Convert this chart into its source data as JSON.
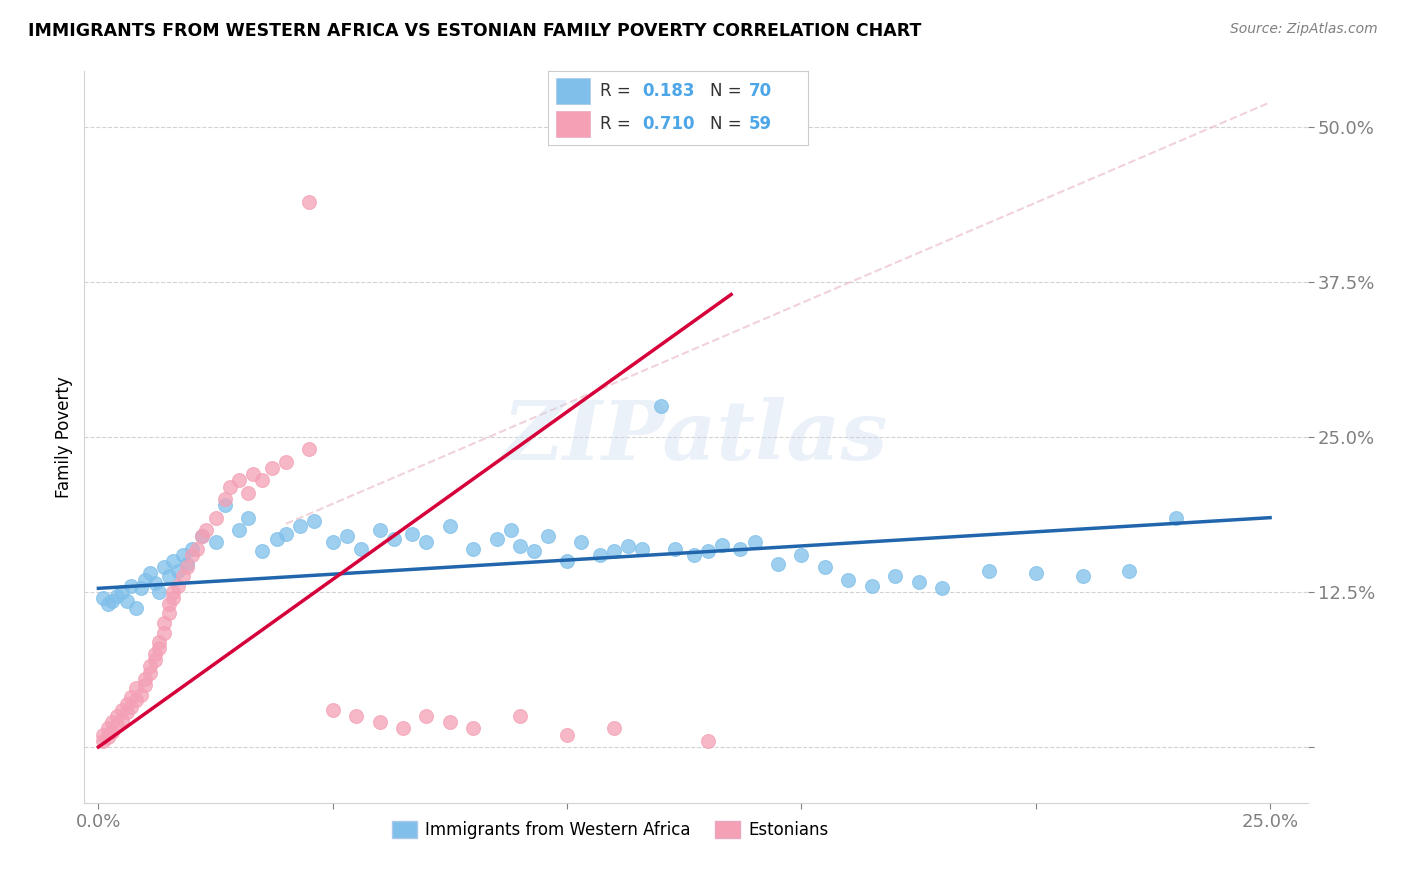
{
  "title": "IMMIGRANTS FROM WESTERN AFRICA VS ESTONIAN FAMILY POVERTY CORRELATION CHART",
  "source": "Source: ZipAtlas.com",
  "ylabel": "Family Poverty",
  "ytick_vals": [
    0.0,
    0.125,
    0.25,
    0.375,
    0.5
  ],
  "ytick_labels": [
    "",
    "12.5%",
    "25.0%",
    "37.5%",
    "50.0%"
  ],
  "xtick_vals": [
    0.0,
    0.05,
    0.1,
    0.15,
    0.2,
    0.25
  ],
  "xtick_labels": [
    "0.0%",
    "",
    "",
    "",
    "",
    "25.0%"
  ],
  "xlim": [
    -0.003,
    0.258
  ],
  "ylim": [
    -0.045,
    0.545
  ],
  "color_blue": "#7fbfea",
  "color_pink": "#f4a0b5",
  "color_blue_line": "#2166ac",
  "color_pink_line": "#d6003a",
  "color_blue_text": "#4da6e8",
  "watermark_text": "ZIPatlas",
  "legend_label_1": "Immigrants from Western Africa",
  "legend_label_2": "Estonians",
  "legend_r1": "0.183",
  "legend_n1": "70",
  "legend_r2": "0.710",
  "legend_n2": "59",
  "blue_x": [
    0.001,
    0.002,
    0.003,
    0.004,
    0.005,
    0.006,
    0.007,
    0.008,
    0.009,
    0.01,
    0.011,
    0.012,
    0.013,
    0.014,
    0.015,
    0.016,
    0.017,
    0.018,
    0.019,
    0.02,
    0.022,
    0.025,
    0.027,
    0.03,
    0.032,
    0.035,
    0.038,
    0.04,
    0.043,
    0.046,
    0.05,
    0.053,
    0.056,
    0.06,
    0.063,
    0.067,
    0.07,
    0.075,
    0.08,
    0.085,
    0.088,
    0.09,
    0.093,
    0.096,
    0.1,
    0.103,
    0.107,
    0.11,
    0.113,
    0.116,
    0.12,
    0.123,
    0.127,
    0.13,
    0.133,
    0.137,
    0.14,
    0.145,
    0.15,
    0.155,
    0.16,
    0.165,
    0.17,
    0.175,
    0.18,
    0.19,
    0.2,
    0.21,
    0.22,
    0.23
  ],
  "blue_y": [
    0.12,
    0.115,
    0.118,
    0.122,
    0.125,
    0.118,
    0.13,
    0.112,
    0.128,
    0.135,
    0.14,
    0.132,
    0.125,
    0.145,
    0.138,
    0.15,
    0.142,
    0.155,
    0.148,
    0.16,
    0.17,
    0.165,
    0.195,
    0.175,
    0.185,
    0.158,
    0.168,
    0.172,
    0.178,
    0.182,
    0.165,
    0.17,
    0.16,
    0.175,
    0.168,
    0.172,
    0.165,
    0.178,
    0.16,
    0.168,
    0.175,
    0.162,
    0.158,
    0.17,
    0.15,
    0.165,
    0.155,
    0.158,
    0.162,
    0.16,
    0.275,
    0.16,
    0.155,
    0.158,
    0.163,
    0.16,
    0.165,
    0.148,
    0.155,
    0.145,
    0.135,
    0.13,
    0.138,
    0.133,
    0.128,
    0.142,
    0.14,
    0.138,
    0.142,
    0.185
  ],
  "pink_x": [
    0.001,
    0.001,
    0.002,
    0.002,
    0.003,
    0.003,
    0.004,
    0.004,
    0.005,
    0.005,
    0.006,
    0.006,
    0.007,
    0.007,
    0.008,
    0.008,
    0.009,
    0.01,
    0.01,
    0.011,
    0.011,
    0.012,
    0.012,
    0.013,
    0.013,
    0.014,
    0.014,
    0.015,
    0.015,
    0.016,
    0.016,
    0.017,
    0.018,
    0.019,
    0.02,
    0.021,
    0.022,
    0.023,
    0.025,
    0.027,
    0.028,
    0.03,
    0.032,
    0.033,
    0.035,
    0.037,
    0.04,
    0.045,
    0.05,
    0.055,
    0.06,
    0.065,
    0.07,
    0.075,
    0.08,
    0.09,
    0.1,
    0.11,
    0.13
  ],
  "pink_y": [
    0.005,
    0.01,
    0.008,
    0.015,
    0.012,
    0.02,
    0.018,
    0.025,
    0.022,
    0.03,
    0.028,
    0.035,
    0.032,
    0.04,
    0.038,
    0.048,
    0.042,
    0.05,
    0.055,
    0.06,
    0.065,
    0.07,
    0.075,
    0.08,
    0.085,
    0.092,
    0.1,
    0.108,
    0.115,
    0.12,
    0.125,
    0.13,
    0.138,
    0.145,
    0.155,
    0.16,
    0.17,
    0.175,
    0.185,
    0.2,
    0.21,
    0.215,
    0.205,
    0.22,
    0.215,
    0.225,
    0.23,
    0.24,
    0.03,
    0.025,
    0.02,
    0.015,
    0.025,
    0.02,
    0.015,
    0.025,
    0.01,
    0.015,
    0.005
  ],
  "pink_outlier_x": [
    0.045
  ],
  "pink_outlier_y": [
    0.44
  ],
  "ref_line_x": [
    0.05,
    0.25
  ],
  "ref_line_y": [
    0.22,
    0.52
  ]
}
